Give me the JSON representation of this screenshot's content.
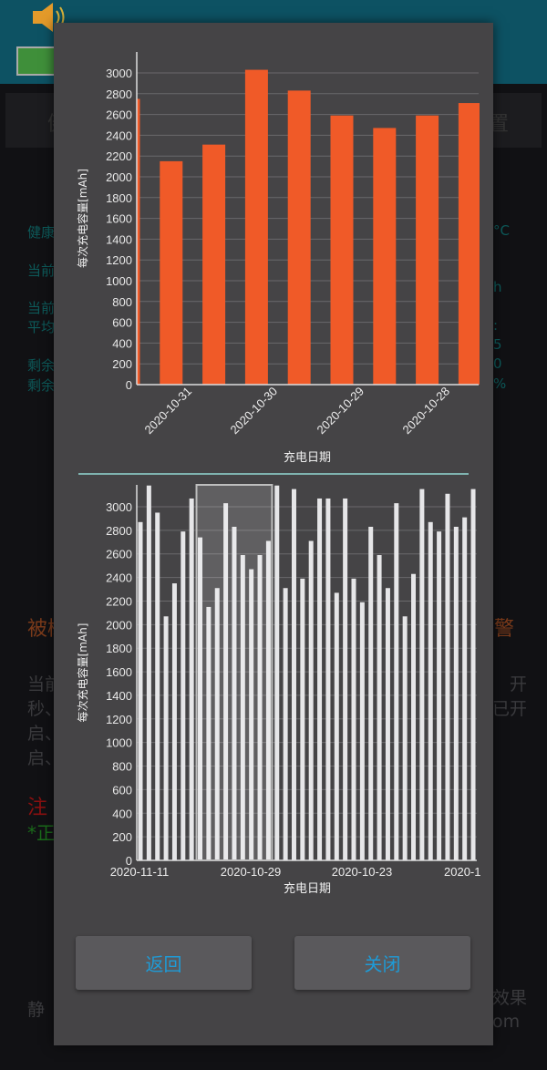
{
  "background": {
    "tab_fragments": [
      "健",
      "置"
    ],
    "left_fragments": [
      "健康",
      "当前",
      "当前",
      "平均",
      "剩余",
      "剩余"
    ],
    "right_fragments": [
      "°C",
      "h",
      ":",
      "5",
      "0",
      "%"
    ],
    "section_left": "被概",
    "section_right": "报警",
    "para_left": [
      "当前",
      "秒、",
      "启、",
      "启、"
    ],
    "para_right": [
      "",
      "开",
      "已开",
      ""
    ],
    "note_red": "注",
    "note_green": "*正",
    "footer_left": "静",
    "footer_right": [
      "效果",
      "om"
    ],
    "colors": {
      "header": "#0d5263",
      "teal_text": "#0d5a5a"
    }
  },
  "dialog": {
    "buttons": {
      "back": "返回",
      "close": "关闭"
    },
    "colors": {
      "background": "#454446",
      "button_text": "#1e9bd7",
      "divider": "#7fb3b0"
    }
  },
  "chart_data": [
    {
      "type": "bar",
      "ylabel": "每次充电容量[mAh]",
      "xlabel": "充电日期",
      "ylim": [
        0,
        3130
      ],
      "yticks": [
        0,
        200,
        400,
        600,
        800,
        1000,
        1200,
        1400,
        1600,
        1800,
        2000,
        2200,
        2400,
        2600,
        2800,
        3000
      ],
      "xtick_labels": [
        "2020-10-31",
        "2020-10-30",
        "2020-10-29",
        "2020-10-28"
      ],
      "values": [
        2750,
        2150,
        2310,
        3030,
        2830,
        2590,
        2470,
        2590,
        2710
      ],
      "grid": true,
      "bar_color": "#f05a28"
    },
    {
      "type": "bar",
      "ylabel": "每次充电容量[mAh]",
      "xlabel": "充电日期",
      "ylim": [
        0,
        3180
      ],
      "yticks": [
        0,
        200,
        400,
        600,
        800,
        1000,
        1200,
        1400,
        1600,
        1800,
        2000,
        2200,
        2400,
        2600,
        2800,
        3000
      ],
      "xtick_labels": [
        "2020-11-11",
        "2020-10-29",
        "2020-10-23",
        "2020-1"
      ],
      "values": [
        2870,
        3180,
        2950,
        2070,
        2350,
        2790,
        3070,
        2740,
        2150,
        2310,
        3030,
        2830,
        2590,
        2470,
        2590,
        2710,
        3180,
        2310,
        3150,
        2390,
        2710,
        3070,
        3070,
        2270,
        3070,
        2390,
        2190,
        2830,
        2590,
        2310,
        3030,
        2070,
        2430,
        3150,
        2870,
        2790,
        3110,
        2830,
        2910,
        3150
      ],
      "selection_range": [
        8,
        16
      ],
      "grid": true,
      "bar_color": "#e6e6e8"
    }
  ]
}
